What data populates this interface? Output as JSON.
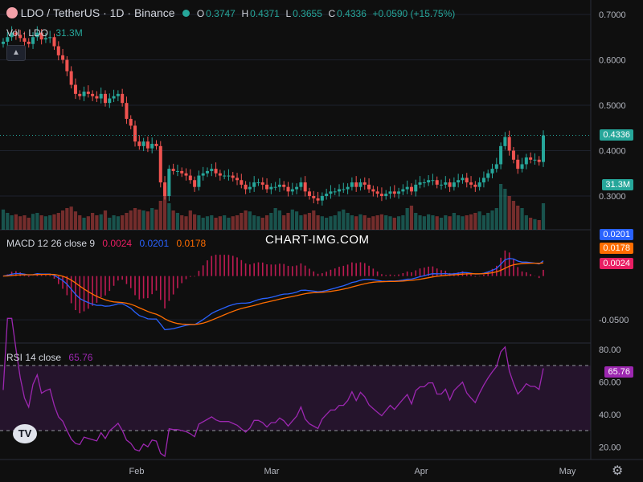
{
  "header": {
    "symbol": "LDO / TetherUS · 1D · Binance",
    "o_label": "O",
    "o_value": "0.3747",
    "h_label": "H",
    "h_value": "0.4371",
    "l_label": "L",
    "l_value": "0.3655",
    "c_label": "C",
    "c_value": "0.4336",
    "change": "+0.0590 (+15.75%)",
    "vol_label": "Vol · LDO",
    "vol_value": "31.3M"
  },
  "macd_header": {
    "label": "MACD 12 26 close 9",
    "hist": "0.0024",
    "macd": "0.0201",
    "signal": "0.0178"
  },
  "rsi_header": {
    "label": "RSI 14 close",
    "value": "65.76"
  },
  "watermark": "CHART-IMG.COM",
  "colors": {
    "up": "#26a69a",
    "down": "#ef5350",
    "macd": "#2962ff",
    "signal": "#ff6d00",
    "hist": "#e91e63",
    "rsi": "#9c27b0",
    "bg": "#0f0f0f"
  },
  "chart_data": [
    {
      "type": "candlestick",
      "title": "LDO / TetherUS · 1D · Binance",
      "price_axis_ticks": [
        "0.7000",
        "0.6000",
        "0.5000",
        "0.4000",
        "0.3000"
      ],
      "ylim": [
        0.22,
        0.72
      ],
      "last_price": "0.4336",
      "volume_last": "31.3M",
      "x_ticks": [
        "Feb",
        "Mar",
        "Apr",
        "May"
      ],
      "closes": [
        0.64,
        0.65,
        0.66,
        0.655,
        0.648,
        0.64,
        0.635,
        0.65,
        0.66,
        0.645,
        0.648,
        0.65,
        0.63,
        0.61,
        0.6,
        0.575,
        0.545,
        0.525,
        0.52,
        0.53,
        0.525,
        0.52,
        0.515,
        0.525,
        0.505,
        0.515,
        0.52,
        0.525,
        0.505,
        0.47,
        0.455,
        0.42,
        0.41,
        0.42,
        0.405,
        0.415,
        0.41,
        0.33,
        0.3,
        0.36,
        0.355,
        0.355,
        0.35,
        0.345,
        0.335,
        0.32,
        0.345,
        0.35,
        0.355,
        0.36,
        0.35,
        0.345,
        0.345,
        0.345,
        0.34,
        0.335,
        0.325,
        0.315,
        0.32,
        0.33,
        0.33,
        0.325,
        0.315,
        0.32,
        0.32,
        0.325,
        0.32,
        0.31,
        0.315,
        0.32,
        0.33,
        0.31,
        0.3,
        0.295,
        0.29,
        0.3,
        0.305,
        0.31,
        0.31,
        0.315,
        0.315,
        0.32,
        0.33,
        0.32,
        0.33,
        0.325,
        0.315,
        0.31,
        0.305,
        0.3,
        0.305,
        0.31,
        0.305,
        0.31,
        0.315,
        0.32,
        0.31,
        0.325,
        0.33,
        0.33,
        0.335,
        0.335,
        0.325,
        0.325,
        0.33,
        0.32,
        0.33,
        0.335,
        0.34,
        0.33,
        0.325,
        0.32,
        0.33,
        0.34,
        0.35,
        0.36,
        0.37,
        0.41,
        0.43,
        0.4,
        0.38,
        0.36,
        0.37,
        0.385,
        0.38,
        0.38,
        0.375,
        0.4336
      ],
      "volume_relative": [
        0.42,
        0.35,
        0.3,
        0.32,
        0.28,
        0.3,
        0.25,
        0.33,
        0.35,
        0.3,
        0.28,
        0.3,
        0.32,
        0.35,
        0.4,
        0.45,
        0.48,
        0.38,
        0.3,
        0.25,
        0.28,
        0.35,
        0.3,
        0.32,
        0.4,
        0.25,
        0.3,
        0.28,
        0.3,
        0.35,
        0.4,
        0.45,
        0.42,
        0.4,
        0.38,
        0.45,
        0.42,
        0.6,
        0.9,
        0.55,
        0.4,
        0.35,
        0.3,
        0.28,
        0.4,
        0.32,
        0.3,
        0.25,
        0.28,
        0.3,
        0.25,
        0.28,
        0.3,
        0.25,
        0.28,
        0.3,
        0.35,
        0.4,
        0.38,
        0.3,
        0.28,
        0.25,
        0.3,
        0.35,
        0.45,
        0.4,
        0.3,
        0.35,
        0.42,
        0.38,
        0.3,
        0.32,
        0.35,
        0.4,
        0.3,
        0.28,
        0.25,
        0.28,
        0.3,
        0.38,
        0.42,
        0.35,
        0.3,
        0.28,
        0.32,
        0.3,
        0.25,
        0.28,
        0.3,
        0.32,
        0.3,
        0.28,
        0.25,
        0.28,
        0.3,
        0.45,
        0.5,
        0.35,
        0.3,
        0.28,
        0.32,
        0.3,
        0.28,
        0.25,
        0.3,
        0.28,
        0.35,
        0.3,
        0.28,
        0.3,
        0.32,
        0.35,
        0.38,
        0.3,
        0.35,
        0.4,
        0.45,
        0.95,
        0.85,
        0.7,
        0.6,
        0.5,
        0.45,
        0.3,
        0.25,
        0.22,
        0.2,
        0.55
      ]
    },
    {
      "type": "line",
      "title": "MACD 12 26 close 9",
      "y_ticks": [
        "-0.0500"
      ],
      "ylim": [
        -0.07,
        0.04
      ],
      "macd_last": 0.0201,
      "signal_last": 0.0178,
      "hist_last": 0.0024
    },
    {
      "type": "line",
      "title": "RSI 14 close",
      "y_ticks": [
        "80.00",
        "60.00",
        "40.00",
        "20.00"
      ],
      "ylim": [
        15,
        82
      ],
      "bands": [
        70,
        30
      ],
      "last": 65.76
    }
  ]
}
